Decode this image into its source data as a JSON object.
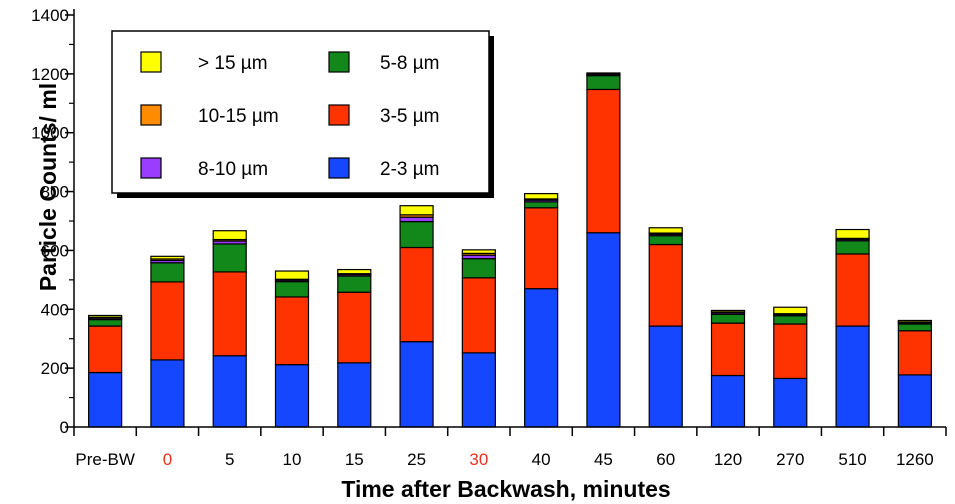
{
  "chart_data": {
    "type": "bar",
    "stacked": true,
    "title": "",
    "xlabel": "Time after Backwash, minutes",
    "ylabel": "Particle Counts/ ml",
    "ylim": [
      0,
      1400
    ],
    "yticks": [
      0,
      200,
      400,
      600,
      800,
      1000,
      1200,
      1400
    ],
    "grid": false,
    "legend_position": "top-left",
    "categories": [
      "Pre-BW",
      "0",
      "5",
      "10",
      "15",
      "25",
      "30",
      "40",
      "45",
      "60",
      "120",
      "270",
      "510",
      "1260"
    ],
    "highlighted_categories": [
      "0",
      "30"
    ],
    "highlight_color": "#e8321e",
    "series": [
      {
        "name": "2-3 µm",
        "color": "#1447ff",
        "values": [
          185,
          228,
          242,
          212,
          218,
          290,
          252,
          470,
          660,
          343,
          175,
          165,
          343,
          177
        ]
      },
      {
        "name": "3-5 µm",
        "color": "#ff3300",
        "values": [
          158,
          265,
          285,
          230,
          240,
          320,
          255,
          275,
          487,
          277,
          178,
          185,
          245,
          150
        ]
      },
      {
        "name": "5-8 µm",
        "color": "#12881a",
        "values": [
          22,
          65,
          95,
          52,
          55,
          88,
          65,
          20,
          47,
          30,
          30,
          28,
          45,
          23
        ]
      },
      {
        "name": "8-10 µm",
        "color": "#9b3dff",
        "values": [
          5,
          8,
          10,
          5,
          5,
          15,
          12,
          6,
          3,
          5,
          5,
          4,
          5,
          4
        ]
      },
      {
        "name": "10-15 µm",
        "color": "#ff8c00",
        "values": [
          3,
          5,
          5,
          3,
          3,
          8,
          6,
          4,
          2,
          4,
          3,
          3,
          3,
          3
        ]
      },
      {
        "name": "> 15 µm",
        "color": "#ffff00",
        "values": [
          6,
          9,
          30,
          28,
          14,
          31,
          12,
          18,
          4,
          18,
          5,
          22,
          30,
          5
        ]
      }
    ],
    "legend_order": [
      "> 15 µm",
      "5-8 µm",
      "10-15 µm",
      "3-5 µm",
      "8-10 µm",
      "2-3 µm"
    ]
  }
}
